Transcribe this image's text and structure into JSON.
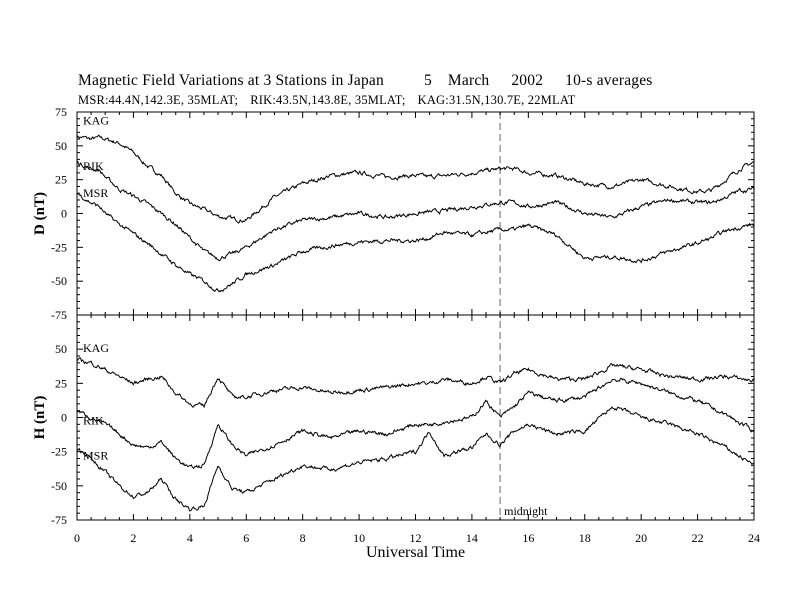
{
  "title": {
    "line1_parts": [
      "Magnetic Field Variations at 3 Stations in Japan",
      "5",
      "March",
      "2002",
      "10-s averages"
    ],
    "line2_parts": [
      "MSR:44.4N,142.3E, 35MLAT;",
      "RIK:43.5N,143.8E, 35MLAT;",
      "KAG:31.5N,130.7E, 22MLAT"
    ]
  },
  "chart_data": [
    {
      "type": "line",
      "panel": "upper",
      "ylabel": "D (nT)",
      "xlabel": "",
      "ylim": [
        -75,
        75
      ],
      "xlim": [
        0,
        24
      ],
      "yticks": [
        75,
        50,
        25,
        0,
        -25,
        -50,
        -75
      ],
      "series": [
        {
          "name": "KAG",
          "x": [
            0,
            0.5,
            0.8,
            1,
            1.5,
            2,
            2.5,
            3,
            3.5,
            4,
            4.5,
            5,
            5.5,
            6,
            7,
            8,
            9,
            10,
            11,
            12,
            12.5,
            13,
            14,
            15,
            15.5,
            16,
            17,
            18,
            19,
            20,
            21,
            22,
            22.5,
            23,
            23.5,
            24
          ],
          "values": [
            57,
            55,
            56,
            55,
            52,
            45,
            35,
            28,
            15,
            7,
            3,
            -2,
            -4,
            -5,
            12,
            22,
            28,
            30,
            27,
            28,
            27,
            28,
            30,
            33,
            33,
            30,
            28,
            22,
            20,
            25,
            20,
            16,
            17,
            25,
            33,
            38
          ]
        },
        {
          "name": "RIK",
          "x": [
            0,
            0.5,
            0.8,
            1,
            1.5,
            2,
            2.5,
            3,
            3.5,
            4,
            4.5,
            5,
            5.5,
            6,
            7,
            8,
            9,
            10,
            11,
            12,
            12.5,
            13,
            14,
            15,
            15.5,
            16,
            17,
            18,
            19,
            20,
            21,
            22,
            22.5,
            23,
            23.5,
            24
          ],
          "values": [
            38,
            33,
            32,
            27,
            18,
            13,
            7,
            0,
            -8,
            -18,
            -28,
            -33,
            -30,
            -25,
            -12,
            -5,
            -3,
            0,
            -3,
            0,
            1,
            2,
            5,
            8,
            8,
            5,
            8,
            0,
            -3,
            5,
            10,
            8,
            8,
            12,
            17,
            18
          ]
        },
        {
          "name": "MSR",
          "x": [
            0,
            0.5,
            0.8,
            1,
            1.5,
            2,
            2.5,
            3,
            3.5,
            4,
            4.5,
            5,
            5.5,
            6,
            7,
            8,
            9,
            10,
            11,
            12,
            12.5,
            13,
            14,
            15,
            15.5,
            16,
            17,
            18,
            19,
            20,
            21,
            22,
            22.5,
            23,
            23.5,
            24
          ],
          "values": [
            15,
            8,
            5,
            0,
            -8,
            -15,
            -22,
            -30,
            -38,
            -45,
            -50,
            -57,
            -52,
            -45,
            -38,
            -28,
            -24,
            -21,
            -20,
            -20,
            -18,
            -14,
            -16,
            -12,
            -12,
            -9,
            -16,
            -33,
            -32,
            -35,
            -28,
            -22,
            -18,
            -13,
            -10,
            -8
          ]
        }
      ],
      "labels": [
        "KAG",
        "RIK",
        "MSR"
      ]
    },
    {
      "type": "line",
      "panel": "lower",
      "ylabel": "H (nT)",
      "xlabel": "Universal Time",
      "ylim": [
        -75,
        75
      ],
      "xlim": [
        0,
        24
      ],
      "xticks": [
        0,
        2,
        4,
        6,
        8,
        10,
        12,
        14,
        16,
        18,
        20,
        22,
        24
      ],
      "yticks": [
        50,
        25,
        0,
        -25,
        -50,
        -75
      ],
      "series": [
        {
          "name": "KAG",
          "x": [
            0,
            0.5,
            1,
            1.5,
            2,
            2.5,
            3,
            3.5,
            4,
            4.5,
            5,
            5.5,
            6,
            7,
            8,
            9,
            10,
            11,
            12,
            12.5,
            13,
            14,
            14.5,
            15,
            15.5,
            16,
            17,
            18,
            19,
            20,
            21,
            22,
            23,
            24
          ],
          "values": [
            42,
            40,
            35,
            30,
            25,
            28,
            30,
            18,
            10,
            8,
            30,
            15,
            15,
            20,
            22,
            18,
            20,
            22,
            25,
            25,
            28,
            25,
            30,
            25,
            32,
            35,
            28,
            28,
            38,
            35,
            30,
            28,
            30,
            27
          ]
        },
        {
          "name": "RIK",
          "x": [
            0,
            0.5,
            1,
            1.5,
            2,
            2.5,
            3,
            3.5,
            4,
            4.5,
            5,
            5.5,
            6,
            7,
            8,
            9,
            10,
            11,
            12,
            12.5,
            13,
            14,
            14.5,
            15,
            15.5,
            16,
            17,
            18,
            19,
            20,
            21,
            22,
            23,
            24
          ],
          "values": [
            5,
            0,
            -5,
            -12,
            -20,
            -22,
            -18,
            -30,
            -37,
            -35,
            -5,
            -20,
            -28,
            -20,
            -10,
            -15,
            -10,
            -12,
            -5,
            -5,
            -3,
            0,
            12,
            0,
            8,
            18,
            12,
            15,
            28,
            25,
            18,
            12,
            2,
            -10
          ]
        },
        {
          "name": "MSR",
          "x": [
            0,
            0.5,
            1,
            1.5,
            2,
            2.5,
            3,
            3.5,
            4,
            4.5,
            5,
            5.5,
            6,
            7,
            8,
            9,
            10,
            11,
            12,
            12.5,
            13,
            14,
            14.5,
            15,
            15.5,
            16,
            17,
            18,
            19,
            20,
            21,
            22,
            23,
            24
          ],
          "values": [
            -22,
            -30,
            -40,
            -50,
            -58,
            -55,
            -45,
            -60,
            -67,
            -65,
            -35,
            -52,
            -55,
            -45,
            -35,
            -38,
            -33,
            -30,
            -25,
            -10,
            -28,
            -22,
            -12,
            -20,
            -10,
            -5,
            -12,
            -10,
            8,
            0,
            -5,
            -12,
            -22,
            -35
          ]
        }
      ],
      "labels": [
        "KAG",
        "RIK",
        "MSR"
      ],
      "annotations": [
        {
          "x": 15,
          "text": "midnight"
        }
      ]
    }
  ]
}
